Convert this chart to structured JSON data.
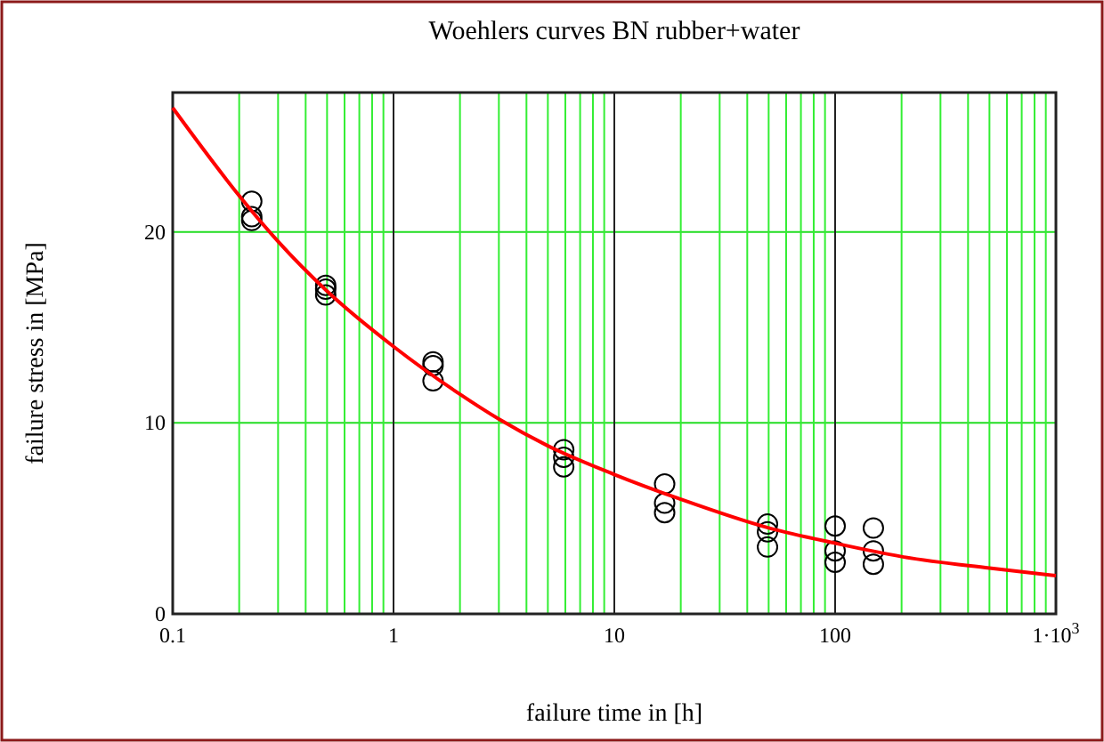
{
  "chart_data": {
    "type": "scatter",
    "title": "Woehlers curves BN rubber+water",
    "xlabel": "failure time in [h]",
    "ylabel": "failure stress in [MPa]",
    "log": "x",
    "grid": true,
    "xlim": [
      0.1,
      1000
    ],
    "ylim": [
      0,
      27.3
    ],
    "xticks": [
      0.1,
      {
        "value": 0.2,
        "label": null
      },
      {
        "value": 0.3,
        "label": null
      },
      {
        "value": 0.4,
        "label": null
      },
      {
        "value": 0.5,
        "label": null
      },
      {
        "value": 0.6,
        "label": null
      },
      {
        "value": 0.7,
        "label": null
      },
      {
        "value": 0.8,
        "label": null
      },
      {
        "value": 0.9,
        "label": null
      },
      1,
      {
        "value": 2,
        "label": null
      },
      {
        "value": 3,
        "label": null
      },
      {
        "value": 4,
        "label": null
      },
      {
        "value": 5,
        "label": null
      },
      {
        "value": 6,
        "label": null
      },
      {
        "value": 7,
        "label": null
      },
      {
        "value": 8,
        "label": null
      },
      {
        "value": 9,
        "label": null
      },
      10,
      {
        "value": 20,
        "label": null
      },
      {
        "value": 30,
        "label": null
      },
      {
        "value": 40,
        "label": null
      },
      {
        "value": 50,
        "label": null
      },
      {
        "value": 60,
        "label": null
      },
      {
        "value": 70,
        "label": null
      },
      {
        "value": 80,
        "label": null
      },
      {
        "value": 90,
        "label": null
      },
      100,
      {
        "value": 200,
        "label": null
      },
      {
        "value": 300,
        "label": null
      },
      {
        "value": 400,
        "label": null
      },
      {
        "value": 500,
        "label": null
      },
      {
        "value": 600,
        "label": null
      },
      {
        "value": 700,
        "label": null
      },
      {
        "value": 800,
        "label": null
      },
      {
        "value": 900,
        "label": null
      },
      {
        "value": 1000,
        "label": "1·10$^{3}$"
      }
    ],
    "yticks": [
      0,
      10,
      20
    ],
    "series": [
      {
        "marker": "circle",
        "color": "#000000",
        "x": [
          0.228,
          0.228,
          0.228,
          0.493,
          0.493,
          0.493,
          1.51,
          1.51,
          1.51,
          5.9,
          5.9,
          5.9,
          16.9,
          16.9,
          16.9,
          49.4,
          49.4,
          49.4,
          100,
          100,
          100,
          149,
          149,
          149
        ],
        "values": [
          21.6,
          20.8,
          20.6,
          17.2,
          17.0,
          16.7,
          13.2,
          13.0,
          12.2,
          8.6,
          8.2,
          7.7,
          6.8,
          5.8,
          5.3,
          4.7,
          4.3,
          3.5,
          4.6,
          3.3,
          2.7,
          4.5,
          3.3,
          2.6
        ]
      },
      {
        "type": "line",
        "marker": "none",
        "line_style": "solid",
        "color": "#ff0000",
        "x": [
          0.1,
          0.2,
          0.3,
          0.5,
          1,
          2,
          3,
          5,
          10,
          20,
          50,
          100,
          200,
          500,
          1000
        ],
        "values": [
          26.5,
          21.9,
          19.5,
          16.9,
          14.0,
          11.5,
          10.2,
          8.8,
          7.3,
          6.0,
          4.5,
          3.7,
          3.0,
          2.4,
          2.0
        ]
      }
    ]
  }
}
